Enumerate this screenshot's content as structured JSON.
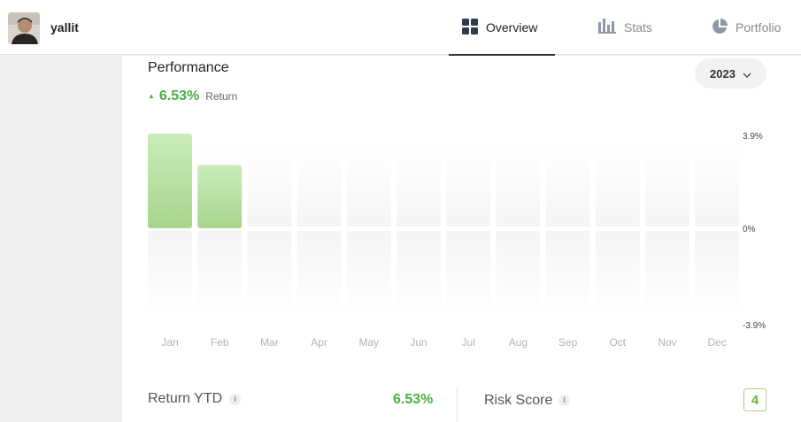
{
  "user": {
    "name": "yallit"
  },
  "nav": {
    "tabs": [
      {
        "label": "Overview",
        "icon": "grid-icon",
        "active": true
      },
      {
        "label": "Stats",
        "icon": "bar-chart-icon",
        "active": false
      },
      {
        "label": "Portfolio",
        "icon": "pie-chart-icon",
        "active": false
      }
    ]
  },
  "performance": {
    "title": "Performance",
    "return_value": "6.53%",
    "return_label": "Return",
    "year": "2023"
  },
  "chart_data": {
    "type": "bar",
    "categories": [
      "Jan",
      "Feb",
      "Mar",
      "Apr",
      "May",
      "Jun",
      "Jul",
      "Aug",
      "Sep",
      "Oct",
      "Nov",
      "Dec"
    ],
    "values": [
      3.9,
      2.6,
      null,
      null,
      null,
      null,
      null,
      null,
      null,
      null,
      null,
      null
    ],
    "ylim": [
      -3.9,
      3.9
    ],
    "y_ticks": [
      "3.9%",
      "0%",
      "-3.9%"
    ],
    "grid": false,
    "colors": {
      "positive": "#a9d58e",
      "positive_top": "#c9ecb8",
      "placeholder": "#f5f5f5"
    }
  },
  "stats": {
    "return_ytd_label": "Return YTD",
    "return_ytd_value": "6.53%",
    "risk_label": "Risk Score",
    "risk_value": "4",
    "info_glyph": "i"
  },
  "colors": {
    "accent_green": "#47b13f"
  }
}
